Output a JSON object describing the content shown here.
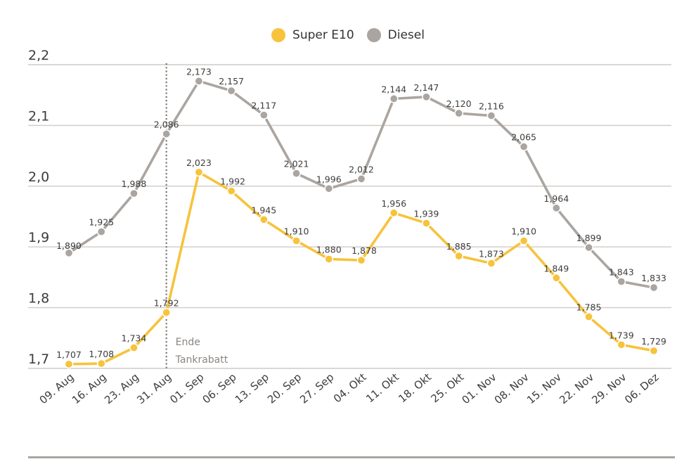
{
  "chart_data": {
    "type": "line",
    "title": "",
    "xlabel": "",
    "ylabel": "",
    "ylim": [
      1.7,
      2.2
    ],
    "yticks": [
      1.7,
      1.8,
      1.9,
      2.0,
      2.1,
      2.2
    ],
    "ytick_labels": [
      "1,7",
      "1,8",
      "1,9",
      "2,0",
      "2,1",
      "2,2"
    ],
    "grid": true,
    "legend_position": "top-center",
    "categories": [
      "09. Aug",
      "16. Aug",
      "23. Aug",
      "31. Aug",
      "01. Sep",
      "06. Sep",
      "13. Sep",
      "20. Sep",
      "27. Sep",
      "04. Okt",
      "11. Okt",
      "18. Okt",
      "25. Okt",
      "01. Nov",
      "08. Nov",
      "15. Nov",
      "22. Nov",
      "29. Nov",
      "06. Dez"
    ],
    "series": [
      {
        "name": "Super E10",
        "color": "#f7c33c",
        "values": [
          null,
          null,
          null,
          null,
          null,
          null,
          null,
          null,
          null,
          null,
          null,
          null,
          null,
          null,
          null,
          null,
          null,
          null,
          null
        ],
        "values_actual": [
          1.707,
          1.708,
          1.734,
          1.792,
          2.023,
          1.992,
          1.945,
          1.91,
          1.88,
          1.878,
          1.956,
          1.939,
          1.885,
          1.873,
          1.91,
          1.849,
          1.785,
          1.739,
          1.729
        ],
        "labels": [
          "1,707",
          "1,708",
          "1,734",
          "1,792",
          "2,023",
          "1,992",
          "1,945",
          "1,910",
          "1,880",
          "1,878",
          "1,956",
          "1,939",
          "1,885",
          "1,873",
          "1,910",
          "1,849",
          "1,785",
          "1,739",
          "1,729"
        ]
      },
      {
        "name": "Diesel",
        "color": "#aaa5a0",
        "values_actual": [
          1.89,
          1.925,
          1.988,
          2.086,
          2.173,
          2.157,
          2.117,
          2.021,
          1.996,
          2.012,
          2.144,
          2.147,
          2.12,
          2.116,
          2.065,
          1.964,
          1.899,
          1.843,
          1.833
        ],
        "labels": [
          "1,890",
          "1,925",
          "1,988",
          "2,086",
          "2,173",
          "2,157",
          "2,117",
          "2,021",
          "1,996",
          "2,012",
          "2,144",
          "2,147",
          "2,120",
          "2,116",
          "2,065",
          "1,964",
          "1,899",
          "1,843",
          "1,833"
        ]
      }
    ],
    "annotations": [
      {
        "at_category": "31. Aug",
        "style": "dotted-vertical-line",
        "text_lines": [
          "Ende",
          "Tankrabatt"
        ]
      }
    ]
  },
  "legend": {
    "items": [
      {
        "label": "Super E10",
        "color": "#f7c33c"
      },
      {
        "label": "Diesel",
        "color": "#aaa5a0"
      }
    ]
  }
}
